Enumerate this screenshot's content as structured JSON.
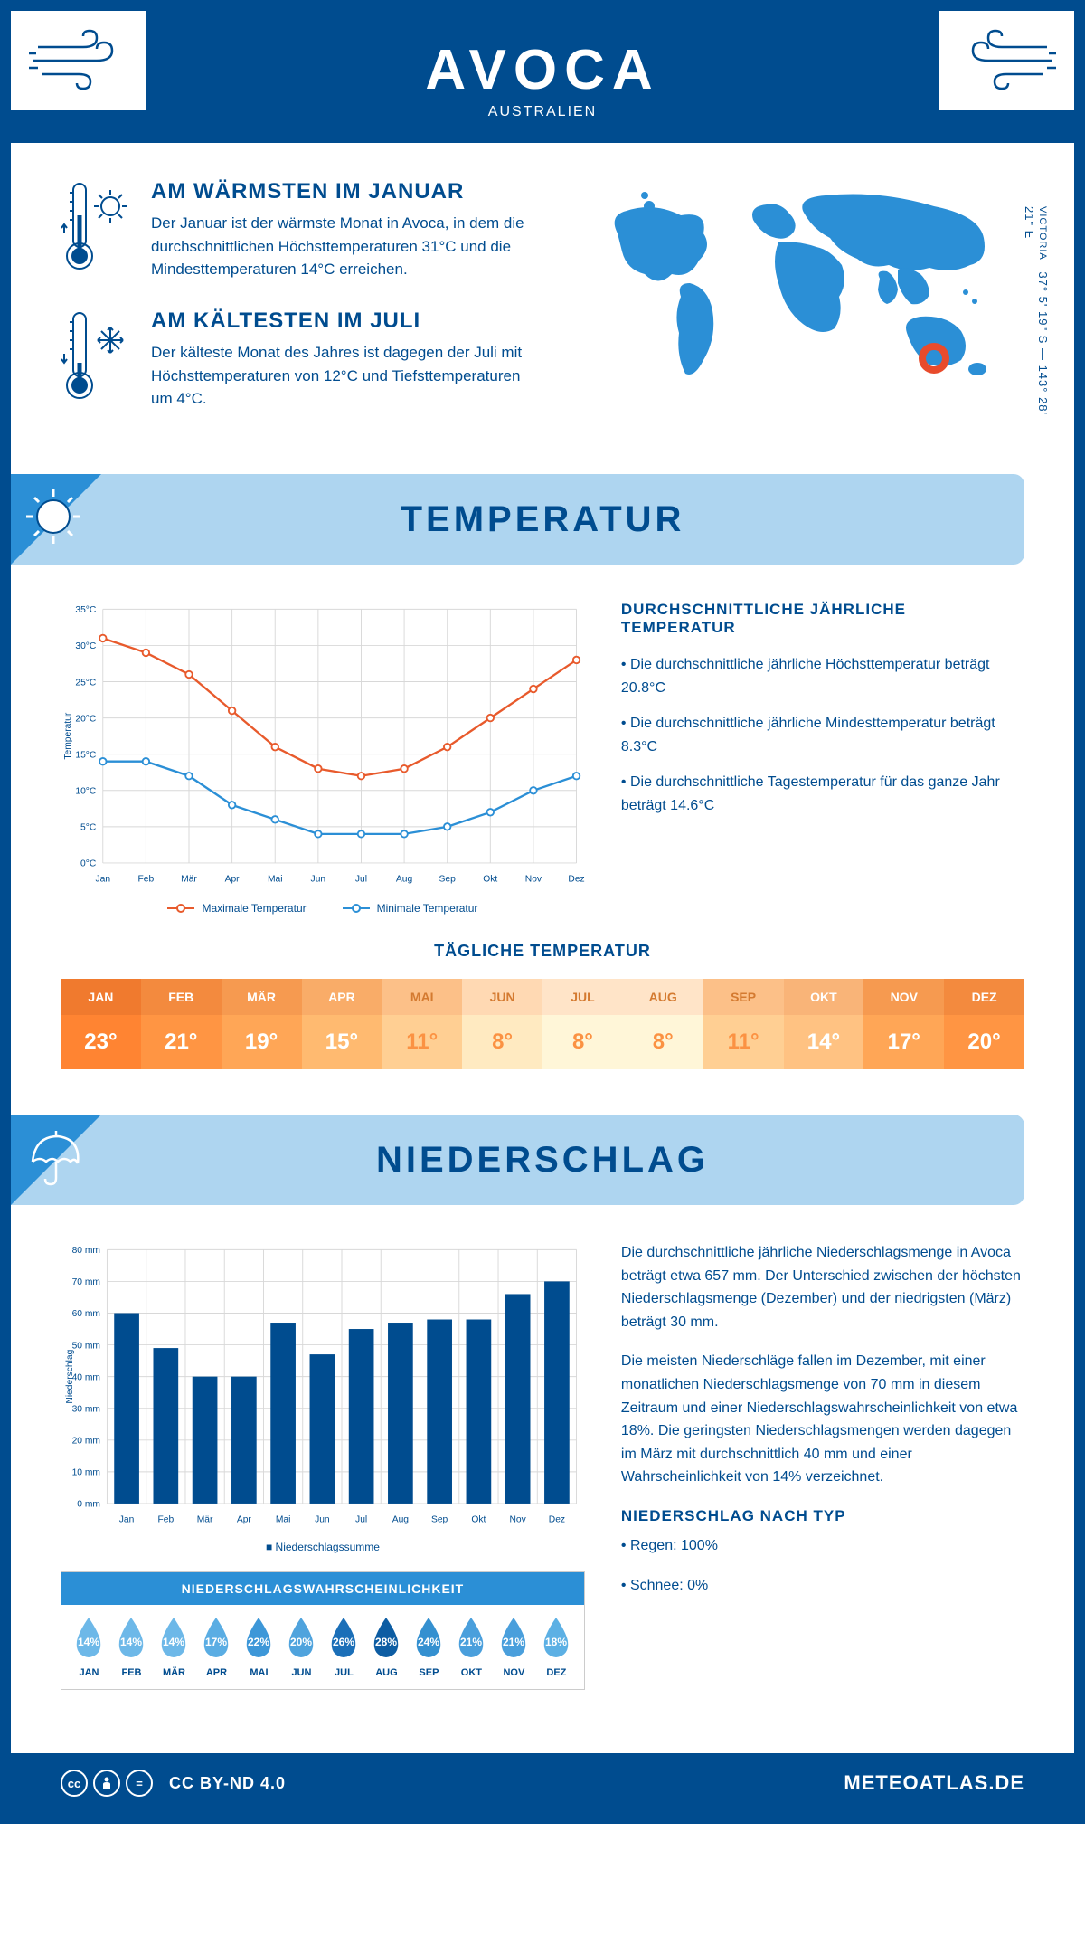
{
  "header": {
    "city": "AVOCA",
    "country": "AUSTRALIEN"
  },
  "location": {
    "state": "VICTORIA",
    "coords": "37° 5' 19\" S — 143° 28' 21\" E"
  },
  "facts": {
    "warm": {
      "title": "AM WÄRMSTEN IM JANUAR",
      "text": "Der Januar ist der wärmste Monat in Avoca, in dem die durchschnittlichen Höchsttemperaturen 31°C und die Mindesttemperaturen 14°C erreichen."
    },
    "cold": {
      "title": "AM KÄLTESTEN IM JULI",
      "text": "Der kälteste Monat des Jahres ist dagegen der Juli mit Höchsttemperaturen von 12°C und Tiefsttemperaturen um 4°C."
    }
  },
  "temp_section": {
    "title": "TEMPERATUR",
    "info_title": "DURCHSCHNITTLICHE JÄHRLICHE TEMPERATUR",
    "bullets": [
      "• Die durchschnittliche jährliche Höchsttemperatur beträgt 20.8°C",
      "• Die durchschnittliche jährliche Mindesttemperatur beträgt 8.3°C",
      "• Die durchschnittliche Tagestemperatur für das ganze Jahr beträgt 14.6°C"
    ],
    "chart": {
      "months": [
        "Jan",
        "Feb",
        "Mär",
        "Apr",
        "Mai",
        "Jun",
        "Jul",
        "Aug",
        "Sep",
        "Okt",
        "Nov",
        "Dez"
      ],
      "max_temp": [
        31,
        29,
        26,
        21,
        16,
        13,
        12,
        13,
        16,
        20,
        24,
        28
      ],
      "min_temp": [
        14,
        14,
        12,
        8,
        6,
        4,
        4,
        4,
        5,
        7,
        10,
        12
      ],
      "max_color": "#e85a2c",
      "min_color": "#2b8fd6",
      "ylim": [
        0,
        35
      ],
      "ytick_step": 5,
      "ylabel": "Temperatur",
      "legend_max": "Maximale Temperatur",
      "legend_min": "Minimale Temperatur",
      "grid_color": "#d8d8d8",
      "background": "#ffffff"
    },
    "daily": {
      "title": "TÄGLICHE TEMPERATUR",
      "months": [
        "JAN",
        "FEB",
        "MÄR",
        "APR",
        "MAI",
        "JUN",
        "JUL",
        "AUG",
        "SEP",
        "OKT",
        "NOV",
        "DEZ"
      ],
      "values": [
        "23°",
        "21°",
        "19°",
        "15°",
        "11°",
        "8°",
        "8°",
        "8°",
        "11°",
        "14°",
        "17°",
        "20°"
      ],
      "colors": [
        "#f07a2e",
        "#f38a3e",
        "#f69a50",
        "#f9ac68",
        "#fcc088",
        "#ffd9b3",
        "#ffe4c8",
        "#ffe4c8",
        "#fcc088",
        "#f9b478",
        "#f69a50",
        "#f38a3e"
      ],
      "text_colors": [
        "#ffffff",
        "#ffffff",
        "#ffffff",
        "#ffffff",
        "#e8873e",
        "#e8873e",
        "#e8873e",
        "#e8873e",
        "#e8873e",
        "#ffffff",
        "#ffffff",
        "#ffffff"
      ],
      "header_text_colors": [
        "#ffffff",
        "#ffffff",
        "#ffffff",
        "#ffffff",
        "#d47a30",
        "#d47a30",
        "#d47a30",
        "#d47a30",
        "#d47a30",
        "#ffffff",
        "#ffffff",
        "#ffffff"
      ]
    }
  },
  "precip_section": {
    "title": "NIEDERSCHLAG",
    "paragraphs": [
      "Die durchschnittliche jährliche Niederschlagsmenge in Avoca beträgt etwa 657 mm. Der Unterschied zwischen der höchsten Niederschlagsmenge (Dezember) und der niedrigsten (März) beträgt 30 mm.",
      "Die meisten Niederschläge fallen im Dezember, mit einer monatlichen Niederschlagsmenge von 70 mm in diesem Zeitraum und einer Niederschlagswahrscheinlichkeit von etwa 18%. Die geringsten Niederschlagsmengen werden dagegen im März mit durchschnittlich 40 mm und einer Wahrscheinlichkeit von 14% verzeichnet."
    ],
    "type_title": "NIEDERSCHLAG NACH TYP",
    "type_bullets": [
      "• Regen: 100%",
      "• Schnee: 0%"
    ],
    "chart": {
      "months": [
        "Jan",
        "Feb",
        "Mär",
        "Apr",
        "Mai",
        "Jun",
        "Jul",
        "Aug",
        "Sep",
        "Okt",
        "Nov",
        "Dez"
      ],
      "values": [
        60,
        49,
        40,
        40,
        57,
        47,
        55,
        57,
        58,
        58,
        66,
        70
      ],
      "bar_color": "#004c8f",
      "ylim": [
        0,
        80
      ],
      "ytick_step": 10,
      "ylabel": "Niederschlag",
      "legend": "Niederschlagssumme",
      "grid_color": "#d8d8d8"
    },
    "probability": {
      "title": "NIEDERSCHLAGSWAHRSCHEINLICHKEIT",
      "months": [
        "JAN",
        "FEB",
        "MÄR",
        "APR",
        "MAI",
        "JUN",
        "JUL",
        "AUG",
        "SEP",
        "OKT",
        "NOV",
        "DEZ"
      ],
      "values": [
        "14%",
        "14%",
        "14%",
        "17%",
        "22%",
        "20%",
        "26%",
        "28%",
        "24%",
        "21%",
        "21%",
        "18%"
      ],
      "colors": [
        "#6db8e8",
        "#6db8e8",
        "#6db8e8",
        "#5aade3",
        "#3d97d8",
        "#4fa3dd",
        "#1b6fb8",
        "#0d5da3",
        "#3490d0",
        "#4a9fdc",
        "#4a9fdc",
        "#5cb0e4"
      ]
    }
  },
  "footer": {
    "license": "CC BY-ND 4.0",
    "site": "METEOATLAS.DE"
  }
}
